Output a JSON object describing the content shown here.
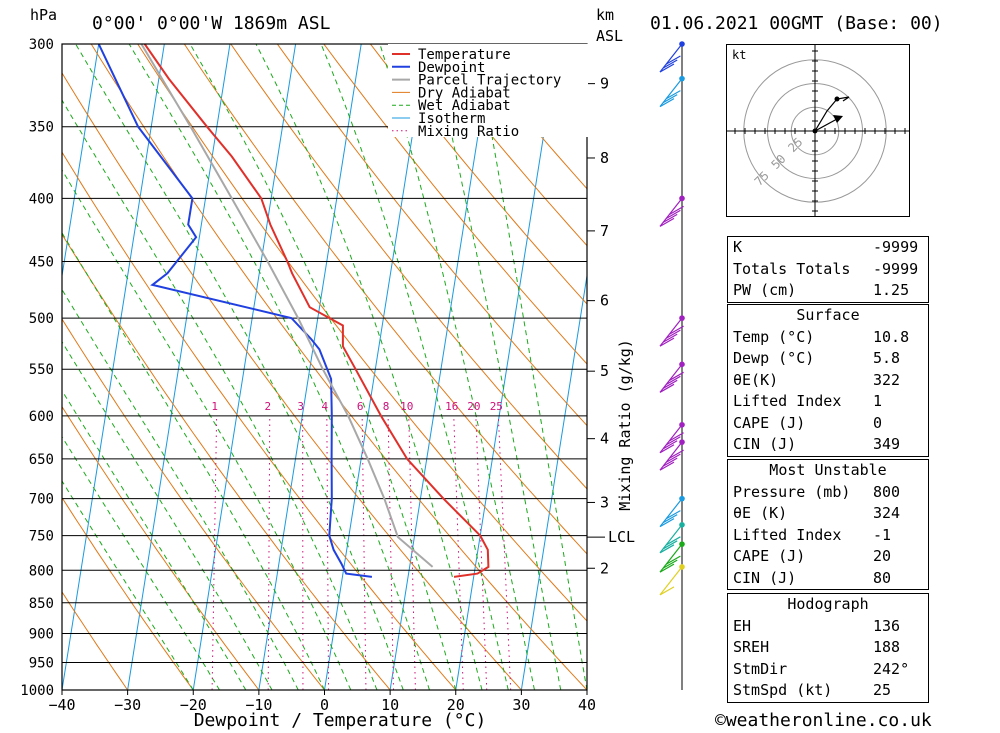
{
  "header": {
    "location": "0°00' 0°00'W 1869m ASL",
    "datetime": "01.06.2021 00GMT (Base: 00)",
    "pressure_unit": "hPa",
    "height_unit": "km",
    "height_ref": "ASL"
  },
  "chart_data": {
    "type": "line",
    "title": "0°00' 0°00'W 1869m ASL",
    "xlabel": "Dewpoint / Temperature (°C)",
    "ylabel": "hPa",
    "right_label": "Mixing Ratio (g/kg)",
    "xlim": [
      -40,
      40
    ],
    "ylim": [
      1000,
      300
    ],
    "x_ticks": [
      "−40",
      "−30",
      "−20",
      "−10",
      "0",
      "10",
      "20",
      "30",
      "40"
    ],
    "pressure_levels": [
      300,
      350,
      400,
      450,
      500,
      550,
      600,
      650,
      700,
      750,
      800,
      850,
      900,
      950,
      1000
    ],
    "km_ticks": [
      {
        "km": 2,
        "p": 797
      },
      {
        "km": 3,
        "p": 705
      },
      {
        "km": 4,
        "p": 626
      },
      {
        "km": 5,
        "p": 552
      },
      {
        "km": 6,
        "p": 484
      },
      {
        "km": 7,
        "p": 425
      },
      {
        "km": 8,
        "p": 371
      },
      {
        "km": 9,
        "p": 323
      }
    ],
    "lcl": {
      "label": "LCL",
      "p": 752
    },
    "mixing_ratio_labels": [
      "1",
      "2",
      "3",
      "4",
      "6",
      "8",
      "10",
      "16",
      "20",
      "25"
    ],
    "legend": [
      "Temperature",
      "Dewpoint",
      "Parcel Trajectory",
      "Dry Adiabat",
      "Wet Adiabat",
      "Isotherm",
      "Mixing Ratio"
    ],
    "colors": {
      "temperature": "#e0302a",
      "dewpoint": "#2040e0",
      "parcel": "#a8a8a8",
      "dry_adiabat": "#e07a1a",
      "wet_adiabat": "#1aaa1a",
      "isotherm": "#1a9ae0",
      "mixing_ratio": "#d0107a"
    },
    "series": [
      {
        "name": "Temperature",
        "points": [
          [
            810,
            17.0
          ],
          [
            805,
            20.5
          ],
          [
            795,
            22.0
          ],
          [
            770,
            21.5
          ],
          [
            750,
            20.0
          ],
          [
            700,
            13.5
          ],
          [
            650,
            7.0
          ],
          [
            600,
            2.0
          ],
          [
            550,
            -3.0
          ],
          [
            527,
            -5.5
          ],
          [
            507,
            -6.0
          ],
          [
            490,
            -11.5
          ],
          [
            460,
            -15.0
          ],
          [
            450,
            -16.0
          ],
          [
            420,
            -19.5
          ],
          [
            400,
            -21.5
          ],
          [
            370,
            -27.0
          ],
          [
            350,
            -31.5
          ],
          [
            320,
            -38.5
          ],
          [
            300,
            -43.0
          ]
        ]
      },
      {
        "name": "Dewpoint",
        "points": [
          [
            810,
            4.5
          ],
          [
            805,
            0.5
          ],
          [
            790,
            -0.5
          ],
          [
            770,
            -2.0
          ],
          [
            750,
            -3.0
          ],
          [
            700,
            -3.5
          ],
          [
            650,
            -4.5
          ],
          [
            600,
            -5.5
          ],
          [
            560,
            -6.5
          ],
          [
            530,
            -9.0
          ],
          [
            520,
            -10.5
          ],
          [
            500,
            -14.0
          ],
          [
            470,
            -36.0
          ],
          [
            460,
            -34.0
          ],
          [
            430,
            -30.5
          ],
          [
            420,
            -32.0
          ],
          [
            400,
            -32.0
          ],
          [
            350,
            -42.0
          ],
          [
            300,
            -50.0
          ]
        ]
      },
      {
        "name": "Parcel Trajectory",
        "points": [
          [
            795,
            13.5
          ],
          [
            752,
            7.5
          ],
          [
            700,
            4.5
          ],
          [
            650,
            1.0
          ],
          [
            600,
            -3.0
          ],
          [
            550,
            -8.0
          ],
          [
            500,
            -13.0
          ],
          [
            450,
            -19.0
          ],
          [
            400,
            -26.0
          ],
          [
            350,
            -34.0
          ],
          [
            300,
            -43.5
          ]
        ]
      }
    ],
    "wind_barbs": [
      {
        "p": 300,
        "color": "#2040e0",
        "flags": 3
      },
      {
        "p": 320,
        "color": "#1a9ae0",
        "flags": 3
      },
      {
        "p": 400,
        "color": "#a020c0",
        "flags": 4
      },
      {
        "p": 500,
        "color": "#a020c0",
        "flags": 4
      },
      {
        "p": 545,
        "color": "#a020c0",
        "flags": 4
      },
      {
        "p": 610,
        "color": "#a020c0",
        "flags": 4
      },
      {
        "p": 630,
        "color": "#a020c0",
        "flags": 4
      },
      {
        "p": 700,
        "color": "#1a9ae0",
        "flags": 3
      },
      {
        "p": 735,
        "color": "#1ab0a0",
        "flags": 3
      },
      {
        "p": 762,
        "color": "#1aaa1a",
        "flags": 3
      },
      {
        "p": 795,
        "color": "#e0d020",
        "flags": 1
      }
    ]
  },
  "hodograph": {
    "unit": "kt",
    "rings": [
      "25",
      "50",
      "75"
    ]
  },
  "indices": {
    "rows": [
      {
        "label": "K",
        "value": "-9999"
      },
      {
        "label": "Totals Totals",
        "value": "-9999"
      },
      {
        "label": "PW (cm)",
        "value": "1.25"
      }
    ]
  },
  "surface": {
    "title": "Surface",
    "rows": [
      {
        "label": "Temp (°C)",
        "value": "10.8"
      },
      {
        "label": "Dewp (°C)",
        "value": "5.8"
      },
      {
        "label": "θE(K)",
        "value": "322"
      },
      {
        "label": "Lifted Index",
        "value": "1"
      },
      {
        "label": "CAPE (J)",
        "value": "0"
      },
      {
        "label": "CIN (J)",
        "value": "349"
      }
    ]
  },
  "most_unstable": {
    "title": "Most Unstable",
    "rows": [
      {
        "label": "Pressure (mb)",
        "value": "800"
      },
      {
        "label": "θE (K)",
        "value": "324"
      },
      {
        "label": "Lifted Index",
        "value": "-1"
      },
      {
        "label": "CAPE (J)",
        "value": "20"
      },
      {
        "label": "CIN (J)",
        "value": "80"
      }
    ]
  },
  "hodograph_table": {
    "title": "Hodograph",
    "rows": [
      {
        "label": "EH",
        "value": "136"
      },
      {
        "label": "SREH",
        "value": "188"
      },
      {
        "label": "StmDir",
        "value": "242°"
      },
      {
        "label": "StmSpd (kt)",
        "value": "25"
      }
    ]
  },
  "credit": "©weatheronline.co.uk"
}
